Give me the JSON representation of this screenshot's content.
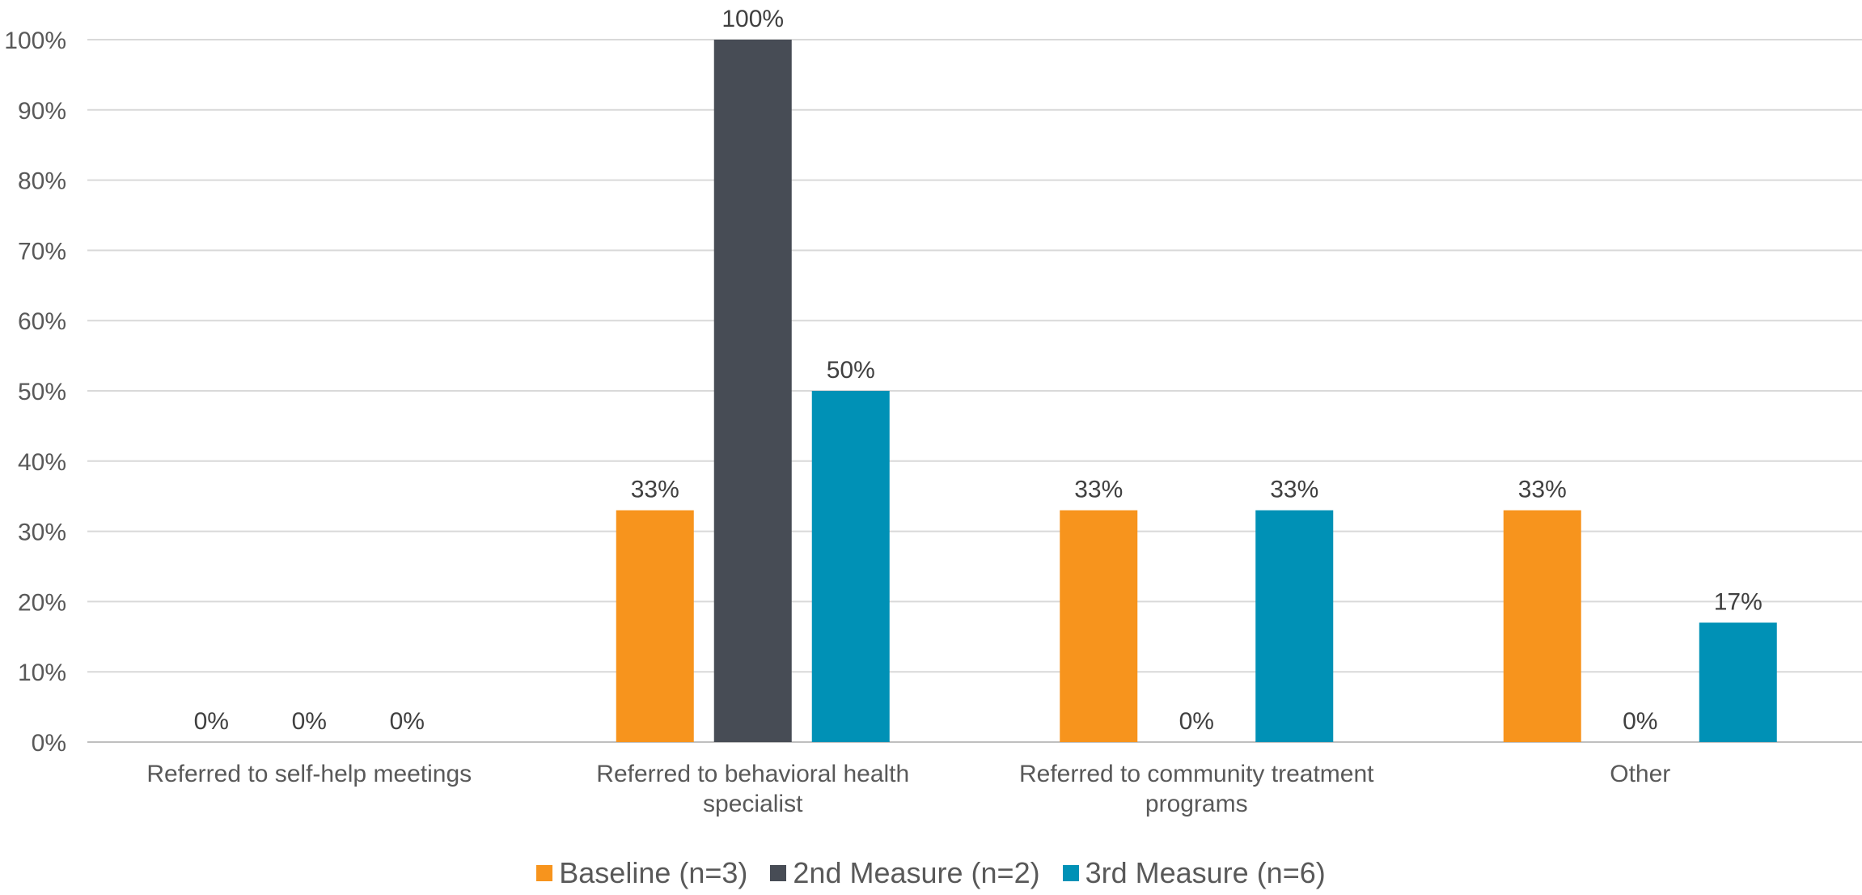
{
  "chart_data": {
    "type": "bar",
    "categories": [
      [
        "Referred to self-help meetings"
      ],
      [
        "Referred to behavioral health",
        "specialist"
      ],
      [
        "Referred to community treatment",
        "programs"
      ],
      [
        "Other"
      ]
    ],
    "series": [
      {
        "name": "Baseline (n=3)",
        "color": "#F7941D",
        "values": [
          0,
          33,
          33,
          33
        ],
        "labels": [
          "0%",
          "33%",
          "33%",
          "33%"
        ]
      },
      {
        "name": "2nd Measure (n=2)",
        "color": "#474C55",
        "values": [
          0,
          100,
          0,
          0
        ],
        "labels": [
          "0%",
          "100%",
          "0%",
          "0%"
        ]
      },
      {
        "name": "3rd Measure (n=6)",
        "color": "#0091B6",
        "values": [
          0,
          50,
          33,
          17
        ],
        "labels": [
          "0%",
          "50%",
          "33%",
          "17%"
        ]
      }
    ],
    "ylim": [
      0,
      100
    ],
    "yticks": [
      "0%",
      "10%",
      "20%",
      "30%",
      "40%",
      "50%",
      "60%",
      "70%",
      "80%",
      "90%",
      "100%"
    ],
    "grid": true,
    "legend_position": "bottom"
  }
}
